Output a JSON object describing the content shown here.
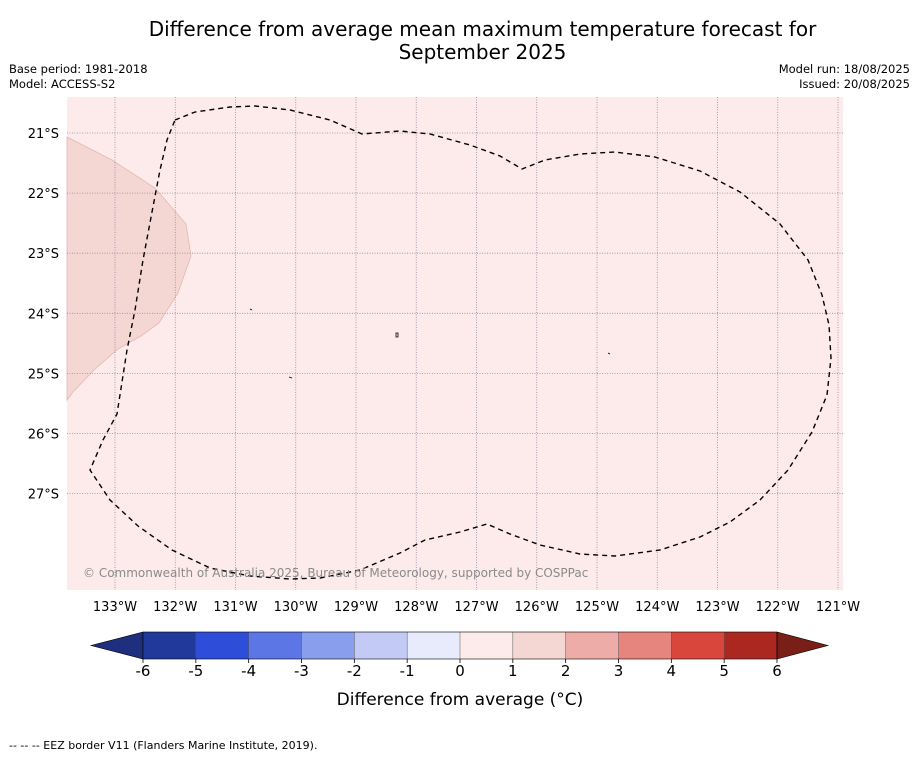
{
  "header": {
    "title_line1": "Difference from average mean maximum temperature forecast for",
    "title_line2": "September 2025",
    "base_period": "Base period: 1981-2018",
    "model": "Model: ACCESS-S2",
    "model_run": "Model run: 18/08/2025",
    "issued": "Issued: 20/08/2025"
  },
  "map": {
    "background_color": "#fcebea",
    "anomaly_patch_color": "#f4d6d3",
    "lat_labels": [
      "21°S",
      "22°S",
      "23°S",
      "24°S",
      "25°S",
      "26°S",
      "27°S"
    ],
    "lon_labels": [
      "133°W",
      "132°W",
      "131°W",
      "130°W",
      "129°W",
      "128°W",
      "127°W",
      "126°W",
      "125°W",
      "124°W",
      "123°W",
      "122°W",
      "121°W"
    ],
    "copyright": "© Commonwealth of Australia 2025, Bureau of Meteorology, supported by COSPPac"
  },
  "colorbar": {
    "ticks": [
      "-6",
      "-5",
      "-4",
      "-3",
      "-2",
      "-1",
      "0",
      "1",
      "2",
      "3",
      "4",
      "5",
      "6"
    ],
    "colors": [
      "#22399c",
      "#2e4ed9",
      "#5c76e6",
      "#8a9eee",
      "#c3caf6",
      "#e8ebfb",
      "#fcebea",
      "#f4d6d3",
      "#edaca8",
      "#e6857d",
      "#d9473c",
      "#aa2820"
    ],
    "low_extend_color": "#1d2f7e",
    "high_extend_color": "#7a1f18",
    "label": "Difference from average (°C)"
  },
  "legend": {
    "eez": "--  --  -- EEZ border V11 (Flanders Marine Institute, 2019)."
  }
}
